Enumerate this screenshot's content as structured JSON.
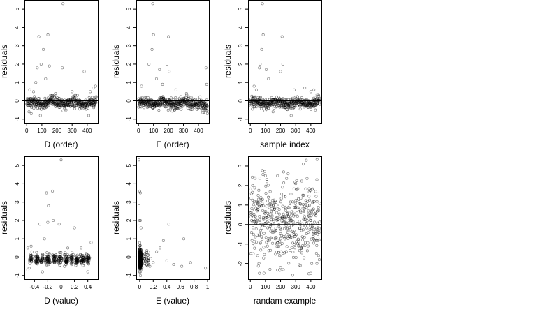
{
  "chart_data": [
    {
      "type": "scatter",
      "xlabel": "D (order)",
      "ylabel": "residuals",
      "xlim": [
        -15,
        470
      ],
      "ylim": [
        -1.2,
        5.5
      ],
      "xticks": [
        0,
        100,
        200,
        300,
        400
      ],
      "yticks": [
        -1,
        0,
        1,
        2,
        3,
        4,
        5
      ],
      "ref_line_y": 0,
      "pattern": "order",
      "points": [
        [
          80,
          3.5
        ],
        [
          140,
          3.6
        ],
        [
          240,
          5.3
        ],
        [
          110,
          2.8
        ],
        [
          95,
          2.0
        ],
        [
          150,
          1.9
        ],
        [
          70,
          1.8
        ],
        [
          235,
          1.8
        ],
        [
          380,
          1.6
        ],
        [
          60,
          1.0
        ],
        [
          125,
          1.2
        ],
        [
          20,
          0.6
        ],
        [
          45,
          0.5
        ],
        [
          190,
          0.4
        ],
        [
          300,
          0.5
        ],
        [
          420,
          0.5
        ],
        [
          455,
          0.8
        ],
        [
          15,
          -0.6
        ],
        [
          30,
          -0.7
        ],
        [
          90,
          -0.8
        ],
        [
          410,
          -0.8
        ],
        [
          260,
          -0.5
        ],
        [
          350,
          -0.45
        ],
        [
          440,
          0.7
        ]
      ]
    },
    {
      "type": "scatter",
      "xlabel": "E (order)",
      "ylabel": "residuals",
      "xlim": [
        -15,
        470
      ],
      "ylim": [
        -1.2,
        5.5
      ],
      "xticks": [
        0,
        100,
        200,
        300,
        400
      ],
      "yticks": [
        -1,
        0,
        1,
        2,
        3,
        4,
        5
      ],
      "ref_line_y": 0,
      "pattern": "order-e",
      "points": [
        [
          95,
          5.3
        ],
        [
          100,
          3.6
        ],
        [
          200,
          3.5
        ],
        [
          90,
          2.8
        ],
        [
          70,
          2.0
        ],
        [
          190,
          2.0
        ],
        [
          140,
          1.7
        ],
        [
          205,
          1.6
        ],
        [
          120,
          1.2
        ],
        [
          20,
          0.8
        ],
        [
          160,
          0.9
        ],
        [
          450,
          1.8
        ],
        [
          455,
          0.9
        ],
        [
          445,
          -0.5
        ],
        [
          460,
          -0.7
        ],
        [
          430,
          -0.4
        ],
        [
          250,
          0.6
        ],
        [
          320,
          0.4
        ]
      ]
    },
    {
      "type": "scatter",
      "xlabel": "sample index",
      "ylabel": "residuals",
      "xlim": [
        -15,
        470
      ],
      "ylim": [
        -1.2,
        5.5
      ],
      "xticks": [
        0,
        100,
        200,
        300,
        400
      ],
      "yticks": [
        -1,
        0,
        1,
        2,
        3,
        4,
        5
      ],
      "ref_line_y": 0,
      "pattern": "order",
      "points": [
        [
          80,
          5.3
        ],
        [
          85,
          3.6
        ],
        [
          210,
          3.5
        ],
        [
          75,
          2.8
        ],
        [
          65,
          2.0
        ],
        [
          215,
          2.0
        ],
        [
          105,
          1.7
        ],
        [
          200,
          1.6
        ],
        [
          60,
          1.8
        ],
        [
          120,
          1.2
        ],
        [
          25,
          0.8
        ],
        [
          40,
          0.6
        ],
        [
          290,
          0.6
        ],
        [
          360,
          0.7
        ],
        [
          400,
          0.5
        ],
        [
          420,
          0.6
        ],
        [
          430,
          -0.5
        ],
        [
          150,
          -0.6
        ],
        [
          270,
          -0.8
        ],
        [
          330,
          -0.45
        ]
      ]
    },
    {
      "type": "scatter",
      "xlabel": "D (value)",
      "ylabel": "residuals",
      "xlim": [
        -0.55,
        0.55
      ],
      "ylim": [
        -1.2,
        5.5
      ],
      "xticks": [
        -0.4,
        -0.2,
        0.0,
        0.2,
        0.4
      ],
      "yticks": [
        -1,
        0,
        1,
        2,
        3,
        4,
        5
      ],
      "ref_line_y": 0,
      "pattern": "value-d",
      "points": [
        [
          0.0,
          5.3
        ],
        [
          -0.22,
          3.5
        ],
        [
          -0.13,
          3.6
        ],
        [
          -0.19,
          2.8
        ],
        [
          -0.12,
          2.0
        ],
        [
          -0.2,
          1.9
        ],
        [
          -0.32,
          1.8
        ],
        [
          -0.03,
          1.8
        ],
        [
          0.2,
          1.6
        ],
        [
          -0.45,
          0.6
        ],
        [
          -0.5,
          0.5
        ],
        [
          -0.25,
          1.0
        ],
        [
          0.1,
          0.5
        ],
        [
          0.3,
          0.5
        ],
        [
          0.45,
          0.8
        ],
        [
          -0.48,
          -0.6
        ],
        [
          -0.5,
          -0.7
        ],
        [
          -0.28,
          -0.8
        ],
        [
          0.4,
          -0.8
        ],
        [
          0.05,
          -0.5
        ],
        [
          0.22,
          -0.45
        ]
      ]
    },
    {
      "type": "scatter",
      "xlabel": "E (value)",
      "ylabel": "residuals",
      "xlim": [
        -0.05,
        1.02
      ],
      "ylim": [
        -1.2,
        5.5
      ],
      "xticks": [
        0.0,
        0.2,
        0.4,
        0.6,
        0.8,
        1.0
      ],
      "yticks": [
        -1,
        0,
        1,
        2,
        3,
        4,
        5
      ],
      "ref_line_y": 0,
      "pattern": "value-e",
      "points": [
        [
          -0.01,
          5.3
        ],
        [
          0.0,
          3.6
        ],
        [
          0.01,
          3.5
        ],
        [
          -0.01,
          2.8
        ],
        [
          0.0,
          2.0
        ],
        [
          0.01,
          2.0
        ],
        [
          -0.01,
          1.7
        ],
        [
          0.02,
          1.6
        ],
        [
          0.43,
          1.8
        ],
        [
          0.35,
          0.9
        ],
        [
          0.3,
          0.5
        ],
        [
          0.25,
          0.3
        ],
        [
          0.65,
          1.0
        ],
        [
          0.2,
          -0.3
        ],
        [
          0.4,
          -0.2
        ],
        [
          0.5,
          -0.4
        ],
        [
          0.62,
          -0.5
        ],
        [
          0.75,
          -0.3
        ],
        [
          0.97,
          -0.6
        ],
        [
          0.15,
          -0.5
        ],
        [
          0.12,
          0.1
        ],
        [
          0.08,
          0.2
        ]
      ]
    },
    {
      "type": "scatter",
      "xlabel": "randam example",
      "ylabel": "residuals",
      "xlim": [
        -15,
        470
      ],
      "ylim": [
        -2.8,
        3.5
      ],
      "xticks": [
        0,
        100,
        200,
        300,
        400
      ],
      "yticks": [
        -2,
        -1,
        0,
        1,
        2,
        3
      ],
      "ref_line_y": 0,
      "pattern": "random",
      "points": [
        [
          370,
          3.3
        ],
        [
          350,
          3.1
        ],
        [
          220,
          2.7
        ],
        [
          250,
          2.6
        ],
        [
          180,
          2.5
        ],
        [
          100,
          2.5
        ],
        [
          30,
          2.4
        ],
        [
          15,
          2.0
        ],
        [
          440,
          2.3
        ],
        [
          300,
          2.1
        ],
        [
          60,
          -2.5
        ],
        [
          130,
          -2.3
        ],
        [
          280,
          -2.6
        ],
        [
          400,
          -2.5
        ],
        [
          200,
          -2.2
        ],
        [
          330,
          -2.1
        ],
        [
          440,
          -2.0
        ]
      ]
    }
  ]
}
